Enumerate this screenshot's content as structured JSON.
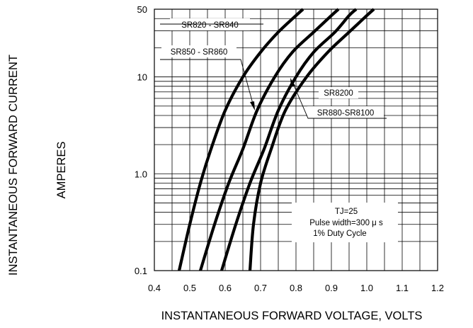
{
  "chart_data": {
    "type": "line",
    "title": "",
    "xlabel": "INSTANTANEOUS FORWARD VOLTAGE, VOLTS",
    "ylabel": [
      "INSTANTANEOUS FORWARD CURRENT",
      "AMPERES"
    ],
    "x_scale": "linear",
    "y_scale": "log",
    "xlim": [
      0.4,
      1.2
    ],
    "ylim": [
      0.1,
      50
    ],
    "x_ticks": [
      0.4,
      0.5,
      0.6,
      0.7,
      0.8,
      0.9,
      1.0,
      1.1,
      1.2
    ],
    "x_tick_labels": [
      "0.4",
      "0.5",
      "0.6",
      "0.7",
      "0.8",
      "0.9",
      "1.0",
      "1.1",
      "1.2"
    ],
    "y_ticks": [
      0.1,
      1.0,
      10,
      50
    ],
    "y_tick_labels": [
      "0.1",
      "1.0",
      "10",
      "50"
    ],
    "grid": true,
    "legend": "none",
    "series": [
      {
        "name": "SR820 - SR840",
        "x": [
          0.47,
          0.5,
          0.53,
          0.56,
          0.6,
          0.65,
          0.7,
          0.75,
          0.8,
          0.82
        ],
        "y": [
          0.1,
          0.3,
          0.8,
          1.8,
          4.5,
          10,
          18,
          29,
          43,
          50
        ]
      },
      {
        "name": "SR850 - SR860",
        "x": [
          0.53,
          0.57,
          0.61,
          0.65,
          0.69,
          0.74,
          0.79,
          0.85,
          0.9,
          0.92
        ],
        "y": [
          0.1,
          0.3,
          0.8,
          1.8,
          4.5,
          10,
          18,
          29,
          43,
          50
        ]
      },
      {
        "name": "SR880-SR8100",
        "x": [
          0.59,
          0.63,
          0.67,
          0.71,
          0.75,
          0.8,
          0.85,
          0.91,
          0.95,
          0.97
        ],
        "y": [
          0.1,
          0.3,
          0.8,
          1.8,
          4.5,
          10,
          18,
          29,
          43,
          50
        ]
      },
      {
        "name": "SR8200",
        "x": [
          0.67,
          0.68,
          0.7,
          0.73,
          0.77,
          0.83,
          0.89,
          0.95,
          1.0,
          1.02
        ],
        "y": [
          0.1,
          0.3,
          0.8,
          1.8,
          4.5,
          10,
          18,
          29,
          43,
          50
        ]
      }
    ],
    "conditions": [
      "TJ=25",
      "Pulse width=300 μ s",
      "1% Duty Cycle"
    ],
    "colors": {
      "line": "#000000",
      "grid": "#000000"
    }
  }
}
